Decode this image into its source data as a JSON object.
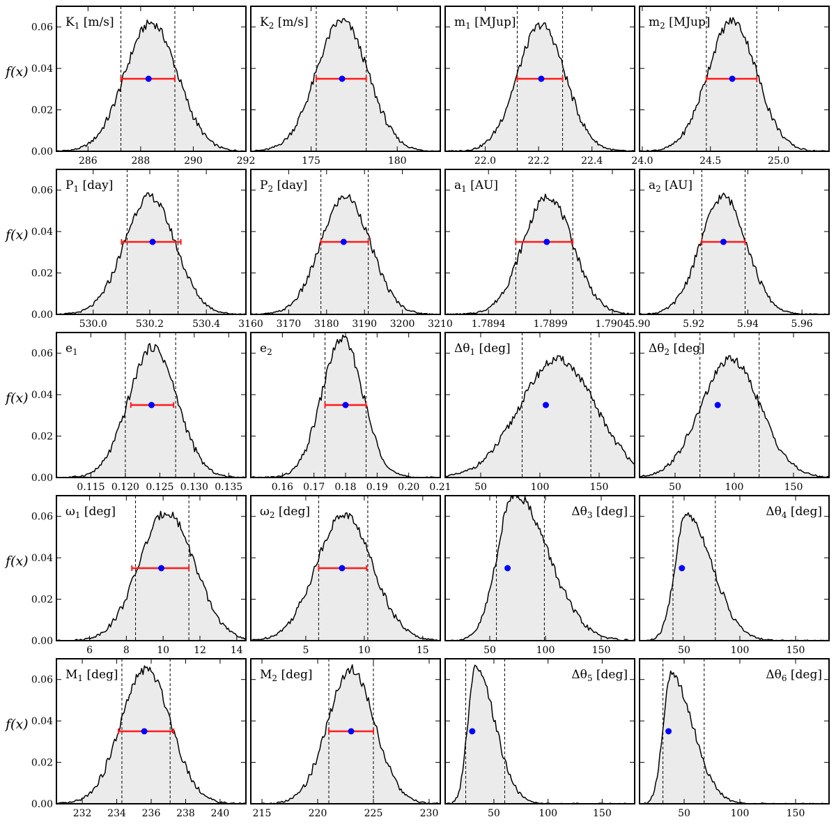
{
  "figure": {
    "ylabel": "f(x)",
    "ylim": [
      0,
      0.07
    ],
    "yticks": [
      "0.00",
      "0.02",
      "0.04",
      "0.06"
    ],
    "ytick_values": [
      0,
      0.02,
      0.04,
      0.06
    ],
    "colors": {
      "fill": "#ebebeb",
      "line": "#000000",
      "errorbar": "#ff1a1a",
      "point": "#0000ff"
    }
  },
  "chart_data": [
    {
      "type": "area",
      "title": "K1 [m/s]",
      "label_main": "K",
      "label_sub": "1",
      "label_unit": " [m/s]",
      "label_pos": "left",
      "xlim": [
        284.8,
        292
      ],
      "xticks": [
        286,
        288,
        290,
        292
      ],
      "xtick_labels": [
        "286",
        "288",
        "290",
        "292"
      ],
      "peak": 0.062,
      "mode": 288.4,
      "sigma": 1.0,
      "lo": 287.25,
      "hi": 289.3,
      "point": 288.3,
      "errorbar": [
        287.25,
        289.3
      ],
      "point_y": 0.035
    },
    {
      "type": "area",
      "title": "K2 [m/s]",
      "label_main": "K",
      "label_sub": "2",
      "label_unit": " [m/s]",
      "label_pos": "left",
      "xlim": [
        171.5,
        182.5
      ],
      "xticks": [
        175,
        180
      ],
      "xtick_labels": [
        "175",
        "180"
      ],
      "peak": 0.063,
      "mode": 176.8,
      "sigma": 1.5,
      "lo": 175.3,
      "hi": 178.2,
      "point": 176.8,
      "errorbar": [
        175.3,
        178.2
      ],
      "point_y": 0.035
    },
    {
      "type": "area",
      "title": "m1 [MJup]",
      "label_main": "m",
      "label_sub": "1",
      "label_unit": " [MJup]",
      "label_pos": "left",
      "xlim": [
        21.85,
        22.56
      ],
      "xticks": [
        22.0,
        22.2,
        22.4
      ],
      "xtick_labels": [
        "22.0",
        "22.2",
        "22.4"
      ],
      "peak": 0.061,
      "mode": 22.21,
      "sigma": 0.09,
      "lo": 22.12,
      "hi": 22.29,
      "point": 22.21,
      "errorbar": [
        22.12,
        22.29
      ],
      "point_y": 0.035
    },
    {
      "type": "area",
      "title": "m2 [MJup]",
      "label_main": "m",
      "label_sub": "2",
      "label_unit": " [MJup]",
      "label_pos": "left",
      "xlim": [
        23.98,
        25.37
      ],
      "xticks": [
        24.0,
        24.5,
        25.0
      ],
      "xtick_labels": [
        "24.0",
        "24.5",
        "25.0"
      ],
      "peak": 0.063,
      "mode": 24.66,
      "sigma": 0.18,
      "lo": 24.47,
      "hi": 24.84,
      "point": 24.66,
      "errorbar": [
        24.47,
        24.84
      ],
      "point_y": 0.035
    },
    {
      "type": "area",
      "title": "P1 [day]",
      "label_main": "P",
      "label_sub": "1",
      "label_unit": " [day]",
      "label_pos": "left",
      "xlim": [
        529.87,
        530.54
      ],
      "xticks": [
        530.0,
        530.2,
        530.4
      ],
      "xtick_labels": [
        "530.0",
        "530.2",
        "530.4"
      ],
      "peak": 0.057,
      "mode": 530.2,
      "sigma": 0.09,
      "lo": 530.12,
      "hi": 530.3,
      "point": 530.21,
      "errorbar": [
        530.1,
        530.31
      ],
      "point_y": 0.035
    },
    {
      "type": "area",
      "title": "P2 [day]",
      "label_main": "P",
      "label_sub": "2",
      "label_unit": " [day]",
      "label_pos": "left",
      "xlim": [
        3160,
        3210
      ],
      "xticks": [
        3160,
        3170,
        3180,
        3190,
        3200,
        3210
      ],
      "xtick_labels": [
        "3160",
        "3170",
        "3180",
        "3190",
        "3200",
        "3210"
      ],
      "peak": 0.057,
      "mode": 3185,
      "sigma": 6.5,
      "lo": 3178.5,
      "hi": 3191,
      "point": 3184.5,
      "errorbar": [
        3178.5,
        3191
      ],
      "point_y": 0.035
    },
    {
      "type": "area",
      "title": "a1 [AU]",
      "label_main": "a",
      "label_sub": "1",
      "label_unit": " [AU]",
      "label_pos": "left",
      "xlim": [
        1.78905,
        1.79058
      ],
      "xticks": [
        1.7894,
        1.7899,
        1.7904
      ],
      "xtick_labels": [
        "1.7894",
        "1.7899",
        "1.7904"
      ],
      "peak": 0.057,
      "mode": 1.78988,
      "sigma": 0.0002,
      "lo": 1.78962,
      "hi": 1.79008,
      "point": 1.78987,
      "errorbar": [
        1.78962,
        1.79008
      ],
      "point_y": 0.035
    },
    {
      "type": "area",
      "title": "a2 [AU]",
      "label_main": "a",
      "label_sub": "2",
      "label_unit": " [AU]",
      "label_pos": "left",
      "xlim": [
        5.9,
        5.97
      ],
      "xticks": [
        5.9,
        5.92,
        5.94,
        5.96
      ],
      "xtick_labels": [
        "5.90",
        "5.92",
        "5.94",
        "5.96"
      ],
      "peak": 0.057,
      "mode": 5.931,
      "sigma": 0.0085,
      "lo": 5.923,
      "hi": 5.939,
      "point": 5.931,
      "errorbar": [
        5.923,
        5.939
      ],
      "point_y": 0.035
    },
    {
      "type": "area",
      "title": "e1",
      "label_main": "e",
      "label_sub": "1",
      "label_unit": "",
      "label_pos": "left",
      "xlim": [
        0.11,
        0.1375
      ],
      "xticks": [
        0.115,
        0.12,
        0.125,
        0.13,
        0.135
      ],
      "xtick_labels": [
        "0.115",
        "0.120",
        "0.125",
        "0.130",
        "0.135"
      ],
      "peak": 0.063,
      "mode": 0.124,
      "sigma": 0.0035,
      "lo": 0.12,
      "hi": 0.1273,
      "point": 0.1238,
      "errorbar": [
        0.1208,
        0.127
      ],
      "point_y": 0.035
    },
    {
      "type": "area",
      "title": "e2",
      "label_main": "e",
      "label_sub": "2",
      "label_unit": "",
      "label_pos": "left",
      "xlim": [
        0.15,
        0.21
      ],
      "xticks": [
        0.16,
        0.17,
        0.18,
        0.19,
        0.2,
        0.21
      ],
      "xtick_labels": [
        "0.16",
        "0.17",
        "0.18",
        "0.19",
        "0.20",
        "0.21"
      ],
      "peak": 0.067,
      "mode": 0.179,
      "sigma": 0.0065,
      "lo": 0.1735,
      "hi": 0.1865,
      "point": 0.18,
      "errorbar": [
        0.1735,
        0.1865
      ],
      "point_y": 0.035
    },
    {
      "type": "area",
      "title": "Δθ1 [deg]",
      "label_main": "Δθ",
      "label_sub": "1",
      "label_unit": " [deg]",
      "label_pos": "left",
      "xlim": [
        20,
        180
      ],
      "xticks": [
        50,
        100,
        150
      ],
      "xtick_labels": [
        "50",
        "100",
        "150"
      ],
      "peak": 0.057,
      "mode": 115,
      "sigma": 32,
      "lo": 85,
      "hi": 143,
      "point": 105,
      "point_y": 0.035
    },
    {
      "type": "area",
      "title": "Δθ2 [deg]",
      "label_main": "Δθ",
      "label_sub": "2",
      "label_unit": " [deg]",
      "label_pos": "left",
      "xlim": [
        20,
        180
      ],
      "xticks": [
        50,
        100,
        150
      ],
      "xtick_labels": [
        "50",
        "100",
        "150"
      ],
      "peak": 0.057,
      "mode": 97,
      "sigma": 25,
      "lo": 71,
      "hi": 121,
      "point": 86,
      "point_y": 0.035
    },
    {
      "type": "area",
      "title": "ω1 [deg]",
      "label_main": "ω",
      "label_sub": "1",
      "label_unit": " [deg]",
      "label_pos": "left",
      "xlim": [
        4.2,
        14.5
      ],
      "xticks": [
        6,
        8,
        10,
        12,
        14
      ],
      "xtick_labels": [
        "6",
        "8",
        "10",
        "12",
        "14"
      ],
      "peak": 0.062,
      "mode": 10.2,
      "sigma": 1.5,
      "lo": 8.5,
      "hi": 11.4,
      "point": 9.9,
      "errorbar": [
        8.3,
        11.4
      ],
      "point_y": 0.035
    },
    {
      "type": "area",
      "title": "ω2 [deg]",
      "label_main": "ω",
      "label_sub": "2",
      "label_unit": " [deg]",
      "label_pos": "left",
      "xlim": [
        0.3,
        16.5
      ],
      "xticks": [
        5,
        10,
        15
      ],
      "xtick_labels": [
        "5",
        "10",
        "15"
      ],
      "peak": 0.061,
      "mode": 8.3,
      "sigma": 2.4,
      "lo": 6.1,
      "hi": 10.3,
      "point": 8.1,
      "errorbar": [
        6.1,
        10.2
      ],
      "point_y": 0.035
    },
    {
      "type": "area",
      "title": "Δθ3 [deg]",
      "label_main": "Δθ",
      "label_sub": "3",
      "label_unit": " [deg]",
      "label_pos": "right",
      "xlim": [
        10,
        180
      ],
      "xticks": [
        50,
        100,
        150
      ],
      "xtick_labels": [
        "50",
        "100",
        "150"
      ],
      "peak": 0.071,
      "mode": 72,
      "sigma": 15,
      "sigma_right": 30,
      "lo": 56,
      "hi": 99,
      "point": 66,
      "point_y": 0.035
    },
    {
      "type": "area",
      "title": "Δθ4 [deg]",
      "label_main": "Δθ",
      "label_sub": "4",
      "label_unit": " [deg]",
      "label_pos": "right",
      "xlim": [
        10,
        180
      ],
      "xticks": [
        50,
        100,
        150
      ],
      "xtick_labels": [
        "50",
        "100",
        "150"
      ],
      "peak": 0.061,
      "mode": 52,
      "sigma": 10,
      "sigma_right": 23,
      "lo": 40,
      "hi": 78,
      "point": 48,
      "point_y": 0.035
    },
    {
      "type": "area",
      "title": "M1 [deg]",
      "label_main": "M",
      "label_sub": "1",
      "label_unit": " [deg]",
      "label_pos": "left",
      "xlim": [
        230.5,
        241.5
      ],
      "xticks": [
        232,
        234,
        236,
        238,
        240
      ],
      "xtick_labels": [
        "232",
        "234",
        "236",
        "238",
        "240"
      ],
      "peak": 0.065,
      "mode": 235.7,
      "sigma": 1.45,
      "lo": 234.3,
      "hi": 237.1,
      "point": 235.6,
      "errorbar": [
        234.1,
        237.3
      ],
      "point_y": 0.035
    },
    {
      "type": "area",
      "title": "M2 [deg]",
      "label_main": "M",
      "label_sub": "2",
      "label_unit": " [deg]",
      "label_pos": "left",
      "xlim": [
        214,
        231
      ],
      "xticks": [
        215,
        220,
        225,
        230
      ],
      "xtick_labels": [
        "215",
        "220",
        "225",
        "230"
      ],
      "peak": 0.065,
      "mode": 223,
      "sigma": 2.1,
      "lo": 221,
      "hi": 225,
      "point": 223,
      "errorbar": [
        221.0,
        225.0
      ],
      "point_y": 0.035
    },
    {
      "type": "area",
      "title": "Δθ5 [deg]",
      "label_main": "Δθ",
      "label_sub": "5",
      "label_unit": " [deg]",
      "label_pos": "right",
      "xlim": [
        5,
        180
      ],
      "xticks": [
        50,
        100,
        150
      ],
      "xtick_labels": [
        "50",
        "100",
        "150"
      ],
      "peak": 0.065,
      "mode": 33,
      "sigma": 7,
      "sigma_right": 18,
      "lo": 24,
      "hi": 60,
      "point": 30,
      "point_y": 0.035
    },
    {
      "type": "area",
      "title": "Δθ6 [deg]",
      "label_main": "Δθ",
      "label_sub": "6",
      "label_unit": " [deg]",
      "label_pos": "right",
      "xlim": [
        10,
        180
      ],
      "xticks": [
        50,
        100,
        150
      ],
      "xtick_labels": [
        "50",
        "100",
        "150"
      ],
      "peak": 0.062,
      "mode": 38,
      "sigma": 7,
      "sigma_right": 20,
      "lo": 31,
      "hi": 68,
      "point": 36,
      "point_y": 0.035
    }
  ]
}
